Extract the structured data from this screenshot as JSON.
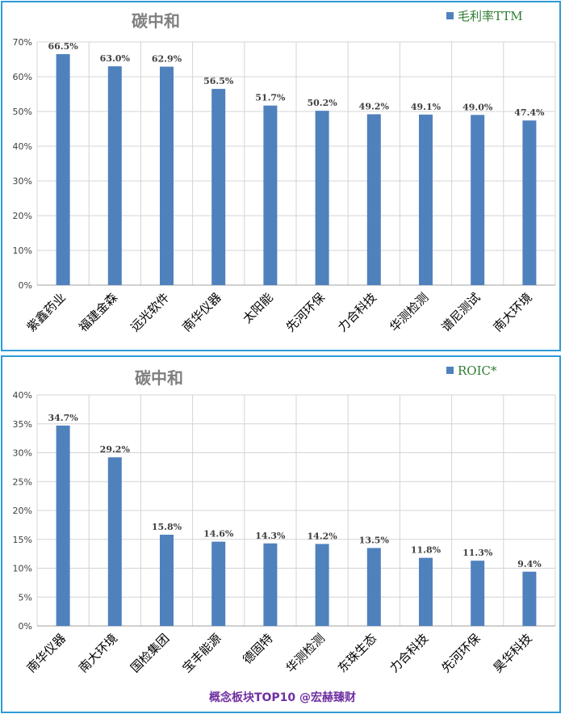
{
  "colors": {
    "bar": "#4f81bd",
    "panel_border": "#2e9ad6",
    "title": "#7f7f7f",
    "legend_text": "#2e7d32",
    "footer_text": "#7030a0",
    "grid": "#d4d4d4"
  },
  "footer": {
    "text": "概念板块TOP10 @宏赫臻财"
  },
  "chart_data": [
    {
      "type": "bar",
      "title": "碳中和",
      "legend": "毛利率TTM",
      "legend_position": "top-right",
      "grid": true,
      "ylim": [
        0,
        70
      ],
      "yticks": [
        "0%",
        "10%",
        "20%",
        "30%",
        "40%",
        "50%",
        "60%",
        "70%"
      ],
      "categories": [
        "紫鑫药业",
        "福建金森",
        "远光软件",
        "南华仪器",
        "太阳能",
        "先河环保",
        "力合科技",
        "华测检测",
        "谱尼测试",
        "南大环境"
      ],
      "values": [
        66.5,
        63.0,
        62.9,
        56.5,
        51.7,
        50.2,
        49.2,
        49.1,
        49.0,
        47.4
      ],
      "value_labels": [
        "66.5%",
        "63.0%",
        "62.9%",
        "56.5%",
        "51.7%",
        "50.2%",
        "49.2%",
        "49.1%",
        "49.0%",
        "47.4%"
      ]
    },
    {
      "type": "bar",
      "title": "碳中和",
      "legend": "ROIC*",
      "legend_position": "top-right",
      "grid": true,
      "ylim": [
        0,
        40
      ],
      "yticks": [
        "0%",
        "5%",
        "10%",
        "15%",
        "20%",
        "25%",
        "30%",
        "35%",
        "40%"
      ],
      "categories": [
        "南华仪器",
        "南大环境",
        "国检集团",
        "宝丰能源",
        "德固特",
        "华测检测",
        "东珠生态",
        "力合科技",
        "先河环保",
        "昊华科技"
      ],
      "values": [
        34.7,
        29.2,
        15.8,
        14.6,
        14.3,
        14.2,
        13.5,
        11.8,
        11.3,
        9.4
      ],
      "value_labels": [
        "34.7%",
        "29.2%",
        "15.8%",
        "14.6%",
        "14.3%",
        "14.2%",
        "13.5%",
        "11.8%",
        "11.3%",
        "9.4%"
      ]
    }
  ]
}
